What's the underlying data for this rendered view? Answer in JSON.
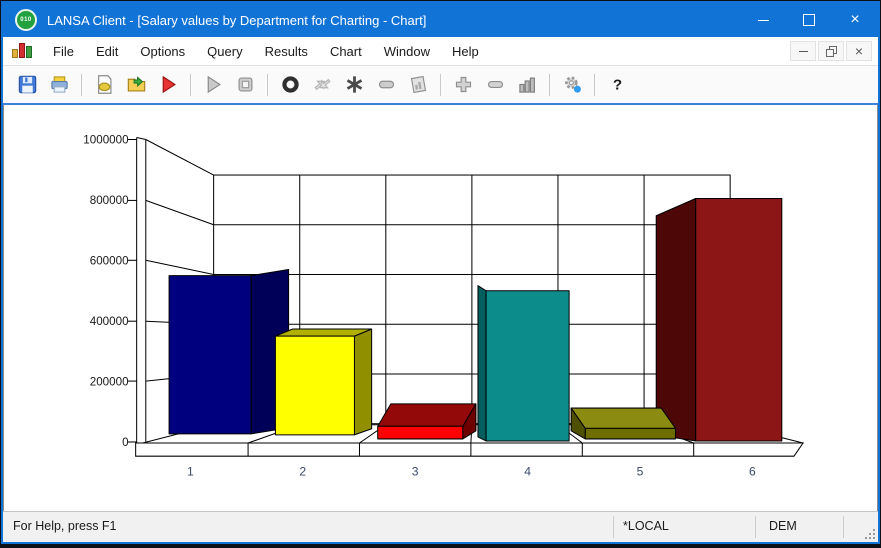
{
  "window": {
    "title": "LANSA Client - [Salary values by Department for Charting - Chart]",
    "app_icon_text": "010",
    "accent_color": "#1273d7"
  },
  "menu": {
    "items": [
      "File",
      "Edit",
      "Options",
      "Query",
      "Results",
      "Chart",
      "Window",
      "Help"
    ]
  },
  "toolbar": {
    "items": [
      "save",
      "print",
      "|",
      "new-chart",
      "open",
      "run",
      "|",
      "play",
      "stop",
      "|",
      "record",
      "transfer",
      "asterisk",
      "collapse",
      "report",
      "|",
      "zoom-in",
      "zoom-out",
      "chart-3d",
      "|",
      "settings",
      "|",
      "help"
    ]
  },
  "chart_data": {
    "type": "bar",
    "style": "3d-perspective",
    "title": "Salary values by Department for Charting",
    "categories": [
      "1",
      "2",
      "3",
      "4",
      "5",
      "6"
    ],
    "values": [
      550000,
      350000,
      52000,
      500000,
      45000,
      805000
    ],
    "ylim": [
      0,
      1000000
    ],
    "yticks": [
      0,
      200000,
      400000,
      600000,
      800000,
      1000000
    ],
    "xlabel": "",
    "ylabel": "",
    "grid": true,
    "legend": false,
    "tick_label_color": "#1a1a1a",
    "category_label_color": "#3a4a6b",
    "colors": [
      {
        "front": "#00007e",
        "side": "#000058",
        "top": "#000070"
      },
      {
        "front": "#ffff00",
        "side": "#8f8f00",
        "top": "#b0b000"
      },
      {
        "front": "#ff0000",
        "side": "#6f0000",
        "top": "#930909"
      },
      {
        "front": "#0d8c8c",
        "side": "#055e5e",
        "top": "#0a7878"
      },
      {
        "front": "#6e6e00",
        "side": "#4f4f00",
        "top": "#8b8b12"
      },
      {
        "front": "#8c1616",
        "side": "#4d0707",
        "top": "#6a0d0d"
      }
    ]
  },
  "status": {
    "help": "For Help, press F1",
    "server": "*LOCAL",
    "partition": "DEM"
  }
}
